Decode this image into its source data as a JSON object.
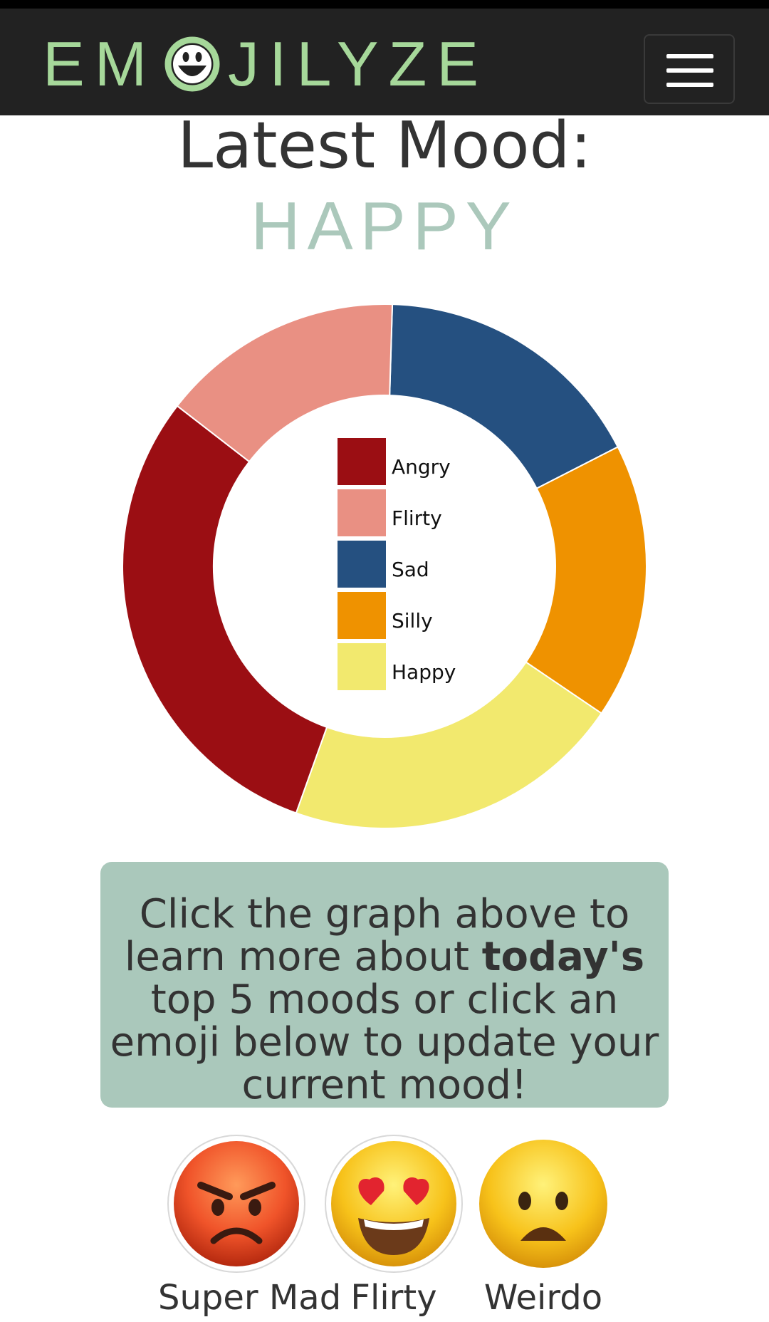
{
  "app": {
    "brand_left": "EM",
    "brand_right": "JILYZE",
    "menu_icon": "hamburger-icon"
  },
  "header": {
    "title": "Latest Mood:",
    "mood": "HAPPY"
  },
  "chart_data": {
    "type": "pie",
    "categories": [
      "Angry",
      "Flirty",
      "Sad",
      "Silly",
      "Happy"
    ],
    "values": [
      30,
      15,
      17,
      17,
      21
    ],
    "colors": [
      "#9b0e13",
      "#e99083",
      "#255080",
      "#ef9200",
      "#f2e96e"
    ],
    "donut": true,
    "legend_position": "center"
  },
  "info": {
    "before": "Click the graph above to learn more about ",
    "bold": "today's",
    "after": " top 5 moods or click an emoji below to update your current mood!"
  },
  "emojis": [
    {
      "label": "Super Mad",
      "icon": "angry-face-icon"
    },
    {
      "label": "Flirty",
      "icon": "heart-eyes-face-icon"
    },
    {
      "label": "Weirdo",
      "icon": "frowning-face-icon"
    }
  ]
}
